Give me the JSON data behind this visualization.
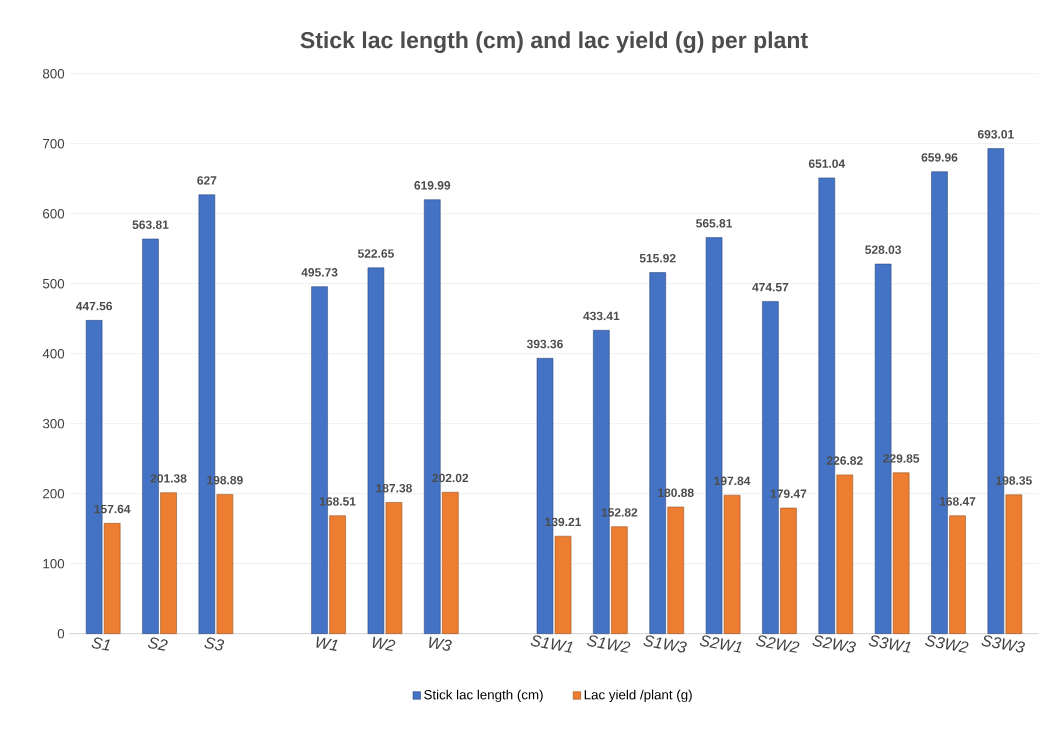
{
  "chart_data": {
    "type": "bar",
    "title": "Stick lac length (cm) and lac yield (g) per plant",
    "categories": [
      "S1",
      "S2",
      "S3",
      null,
      "W1",
      "W2",
      "W3",
      null,
      "S1W1",
      "S1W2",
      "S1W3",
      "S2W1",
      "S2W2",
      "S2W3",
      "S3W1",
      "S3W2",
      "S3W3"
    ],
    "series": [
      {
        "name": "Stick lac length (cm)",
        "color": "#4472c4",
        "values": [
          447.56,
          563.81,
          627,
          null,
          495.73,
          522.65,
          619.99,
          null,
          393.36,
          433.41,
          515.92,
          565.81,
          474.57,
          651.04,
          528.03,
          659.96,
          693.01
        ]
      },
      {
        "name": "Lac yield /plant (g)",
        "color": "#ed7d31",
        "values": [
          157.64,
          201.38,
          198.89,
          null,
          168.51,
          187.38,
          202.02,
          null,
          139.21,
          152.82,
          180.88,
          197.84,
          179.47,
          226.82,
          229.85,
          168.47,
          198.35
        ]
      }
    ],
    "ylim": [
      0,
      800
    ],
    "yticks": [
      0,
      100,
      200,
      300,
      400,
      500,
      600,
      700,
      800
    ],
    "grid": "y",
    "legend": "bottom",
    "data_labels": true
  }
}
